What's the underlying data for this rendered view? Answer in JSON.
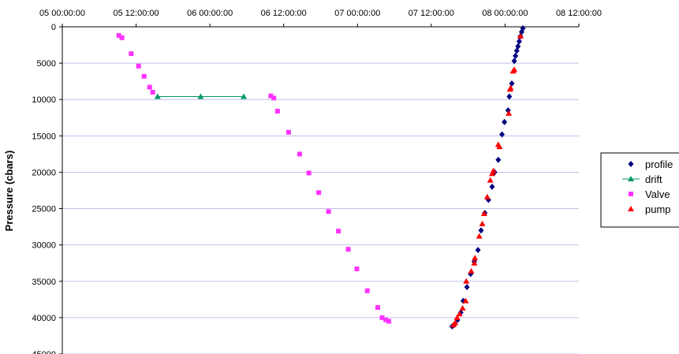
{
  "chart_data": {
    "type": "scatter",
    "title": "",
    "xlabel": "",
    "ylabel": "Pressure (cbars)",
    "x_ticks": [
      "05 00:00:00",
      "05 12:00:00",
      "06 00:00:00",
      "06 12:00:00",
      "07 00:00:00",
      "07 12:00:00",
      "08 00:00:00",
      "08 12:00:00"
    ],
    "x_range_hours": [
      0,
      84
    ],
    "y_ticks": [
      "0",
      "5000",
      "10000",
      "15000",
      "20000",
      "25000",
      "30000",
      "35000",
      "40000",
      "45000"
    ],
    "ylim": [
      0,
      45000
    ],
    "y_inverted": true,
    "grid": "horizontal",
    "legend_position": "right",
    "colors": {
      "grid": "#c0c0f0",
      "profile": "#000080",
      "drift": "#009966",
      "valve": "#ff33ff",
      "pump": "#ff0000"
    },
    "series": [
      {
        "name": "profile",
        "marker": "diamond",
        "color": "#000080",
        "line": false,
        "x": [
          74.9,
          74.7,
          74.5,
          74.3,
          74.1,
          73.9,
          73.7,
          73.5,
          73.1,
          72.7,
          72.5,
          71.9,
          71.5,
          70.9,
          70.3,
          69.9,
          69.3,
          68.7,
          68.1,
          67.6,
          67.0,
          66.4,
          65.8,
          65.2,
          64.8,
          64.3,
          63.7,
          63.4
        ],
        "y": [
          200,
          700,
          1300,
          2000,
          2700,
          3300,
          4000,
          4700,
          7800,
          9600,
          11500,
          13100,
          14800,
          18300,
          20000,
          22000,
          23800,
          25600,
          28000,
          30700,
          32300,
          34000,
          35800,
          37700,
          39300,
          40300,
          41000,
          41200
        ]
      },
      {
        "name": "drift",
        "marker": "triangle",
        "color": "#009966",
        "line": true,
        "x": [
          15.5,
          22.5,
          29.5
        ],
        "y": [
          9600,
          9600,
          9600
        ]
      },
      {
        "name": "Valve",
        "marker": "square",
        "color": "#ff33ff",
        "line": false,
        "x": [
          9.2,
          9.7,
          11.2,
          12.4,
          13.3,
          14.2,
          14.7,
          33.9,
          34.4,
          35.0,
          36.8,
          38.6,
          40.1,
          41.7,
          43.3,
          44.9,
          46.5,
          47.9,
          49.6,
          51.3,
          52.0,
          52.6,
          53.1
        ],
        "y": [
          1200,
          1500,
          3700,
          5400,
          6800,
          8300,
          9000,
          9500,
          9800,
          11600,
          14500,
          17500,
          20100,
          22800,
          25400,
          28100,
          30600,
          33300,
          36300,
          38600,
          40000,
          40300,
          40500
        ]
      },
      {
        "name": "pump",
        "marker": "triangle",
        "color": "#ff0000",
        "line": false,
        "x": [
          74.5,
          73.5,
          73.3,
          72.9,
          72.8,
          72.6,
          71.1,
          70.9,
          70.1,
          69.9,
          69.6,
          69.1,
          68.6,
          68.3,
          67.8,
          67.1,
          67.0,
          66.5,
          65.7,
          65.6,
          65.1,
          64.6,
          64.2,
          63.9,
          63.6
        ],
        "y": [
          1300,
          5900,
          6100,
          8400,
          8600,
          11900,
          16500,
          16200,
          19800,
          20200,
          21100,
          23400,
          25700,
          27100,
          28800,
          31800,
          32500,
          33600,
          35000,
          37700,
          38700,
          39500,
          40000,
          40700,
          41000
        ]
      }
    ]
  }
}
